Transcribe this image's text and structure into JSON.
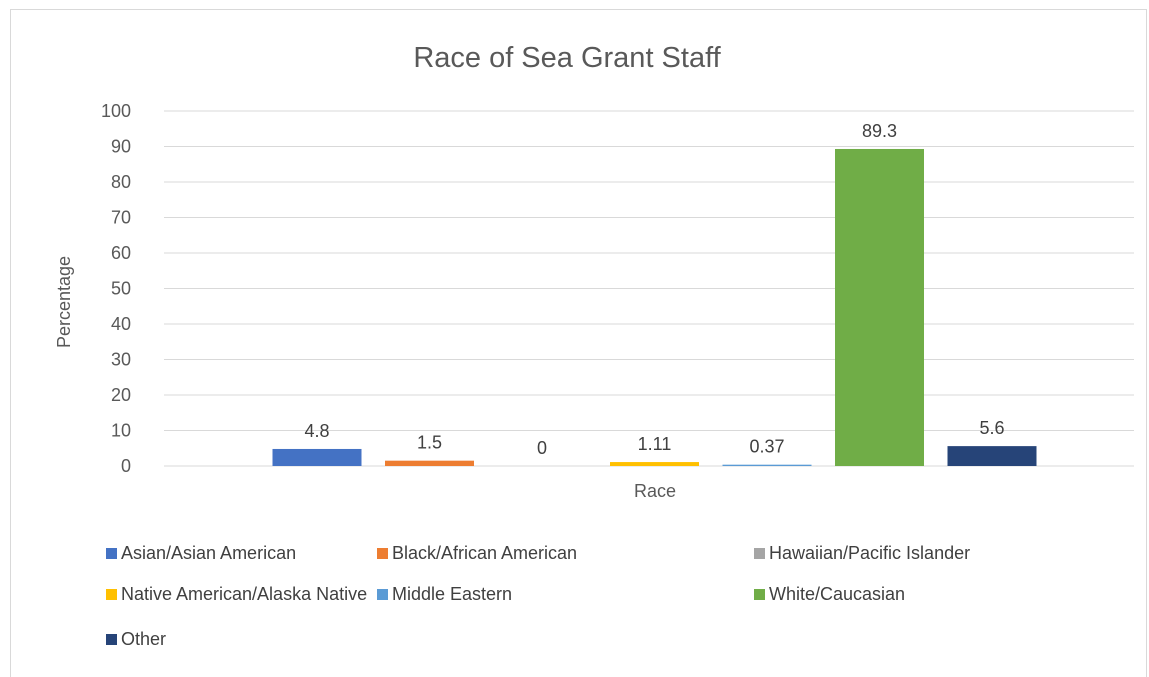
{
  "chart_data": {
    "type": "bar",
    "title": "Race of Sea Grant Staff",
    "xlabel": "Race",
    "ylabel": "Percentage",
    "ylim": [
      0,
      100
    ],
    "yticks": [
      0,
      10,
      20,
      30,
      40,
      50,
      60,
      70,
      80,
      90,
      100
    ],
    "categories": [
      "Race"
    ],
    "series": [
      {
        "name": "Asian/Asian American",
        "values": [
          4.8
        ],
        "label": "4.8",
        "color": "#4472c4"
      },
      {
        "name": "Black/African American",
        "values": [
          1.5
        ],
        "label": "1.5",
        "color": "#ed7d31"
      },
      {
        "name": "Hawaiian/Pacific Islander",
        "values": [
          0
        ],
        "label": "0",
        "color": "#a5a5a5"
      },
      {
        "name": "Native American/Alaska Native",
        "values": [
          1.11
        ],
        "label": "1.11",
        "color": "#ffc000"
      },
      {
        "name": "Middle Eastern",
        "values": [
          0.37
        ],
        "label": "0.37",
        "color": "#5b9bd5"
      },
      {
        "name": "White/Caucasian",
        "values": [
          89.3
        ],
        "label": "89.3",
        "color": "#70ad47"
      },
      {
        "name": "Other",
        "values": [
          5.6
        ],
        "label": "5.6",
        "color": "#264478"
      }
    ],
    "grid": true,
    "legend": "bottom"
  }
}
